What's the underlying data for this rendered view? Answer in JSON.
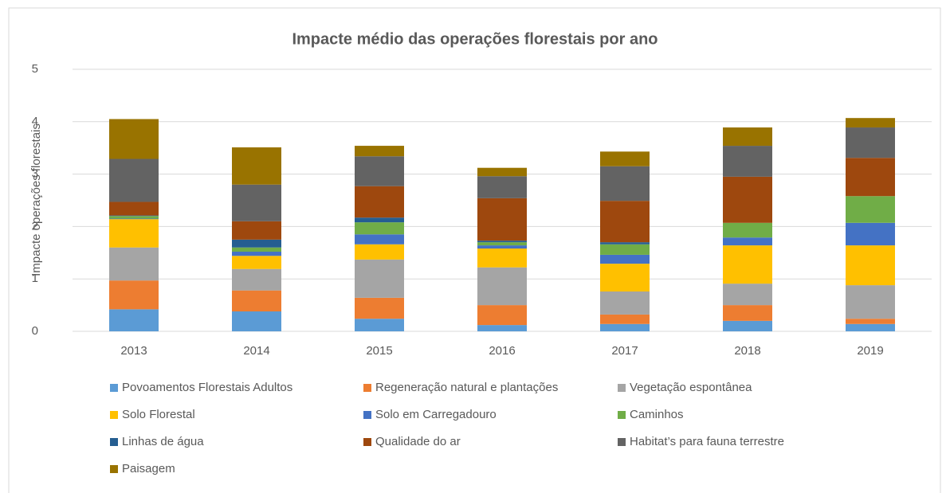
{
  "chart_data": {
    "type": "stacked_bar",
    "title": "Impacte médio das operações florestais por ano",
    "y_label": "Impacte operações florestais",
    "categories": [
      "2013",
      "2014",
      "2015",
      "2016",
      "2017",
      "2018",
      "2019"
    ],
    "series": [
      {
        "name": "Povoamentos Florestais Adultos",
        "color": "#5b9bd5",
        "values": [
          0.42,
          0.38,
          0.24,
          0.12,
          0.14,
          0.2,
          0.14
        ]
      },
      {
        "name": "Regeneração natural e plantações",
        "color": "#ed7d31",
        "values": [
          0.55,
          0.4,
          0.4,
          0.38,
          0.18,
          0.3,
          0.1
        ]
      },
      {
        "name": "Vegetação espontânea",
        "color": "#a5a5a5",
        "values": [
          0.63,
          0.41,
          0.73,
          0.72,
          0.44,
          0.41,
          0.64
        ]
      },
      {
        "name": "Solo Florestal",
        "color": "#ffc000",
        "values": [
          0.54,
          0.25,
          0.29,
          0.36,
          0.53,
          0.73,
          0.76
        ]
      },
      {
        "name": "Solo em Carregadouro",
        "color": "#4472c4",
        "values": [
          0.01,
          0.08,
          0.19,
          0.06,
          0.17,
          0.15,
          0.43
        ]
      },
      {
        "name": "Caminhos",
        "color": "#70ad47",
        "values": [
          0.05,
          0.08,
          0.23,
          0.06,
          0.2,
          0.28,
          0.51
        ]
      },
      {
        "name": "Linhas de água",
        "color": "#255e91",
        "values": [
          0.01,
          0.15,
          0.09,
          0.03,
          0.04,
          0.0,
          0.0
        ]
      },
      {
        "name": "Qualidade do ar",
        "color": "#9e480e",
        "values": [
          0.26,
          0.35,
          0.6,
          0.81,
          0.79,
          0.88,
          0.73
        ]
      },
      {
        "name": "Habitat’s para fauna terrestre",
        "color": "#636363",
        "values": [
          0.82,
          0.7,
          0.57,
          0.42,
          0.66,
          0.59,
          0.58
        ]
      },
      {
        "name": "Paisagem",
        "color": "#997300",
        "values": [
          0.76,
          0.71,
          0.2,
          0.16,
          0.28,
          0.35,
          0.18
        ]
      }
    ],
    "ylim": [
      0,
      5
    ],
    "yticks": [
      0,
      1,
      2,
      3,
      4,
      5
    ],
    "grid": true,
    "legend": "bottom"
  }
}
